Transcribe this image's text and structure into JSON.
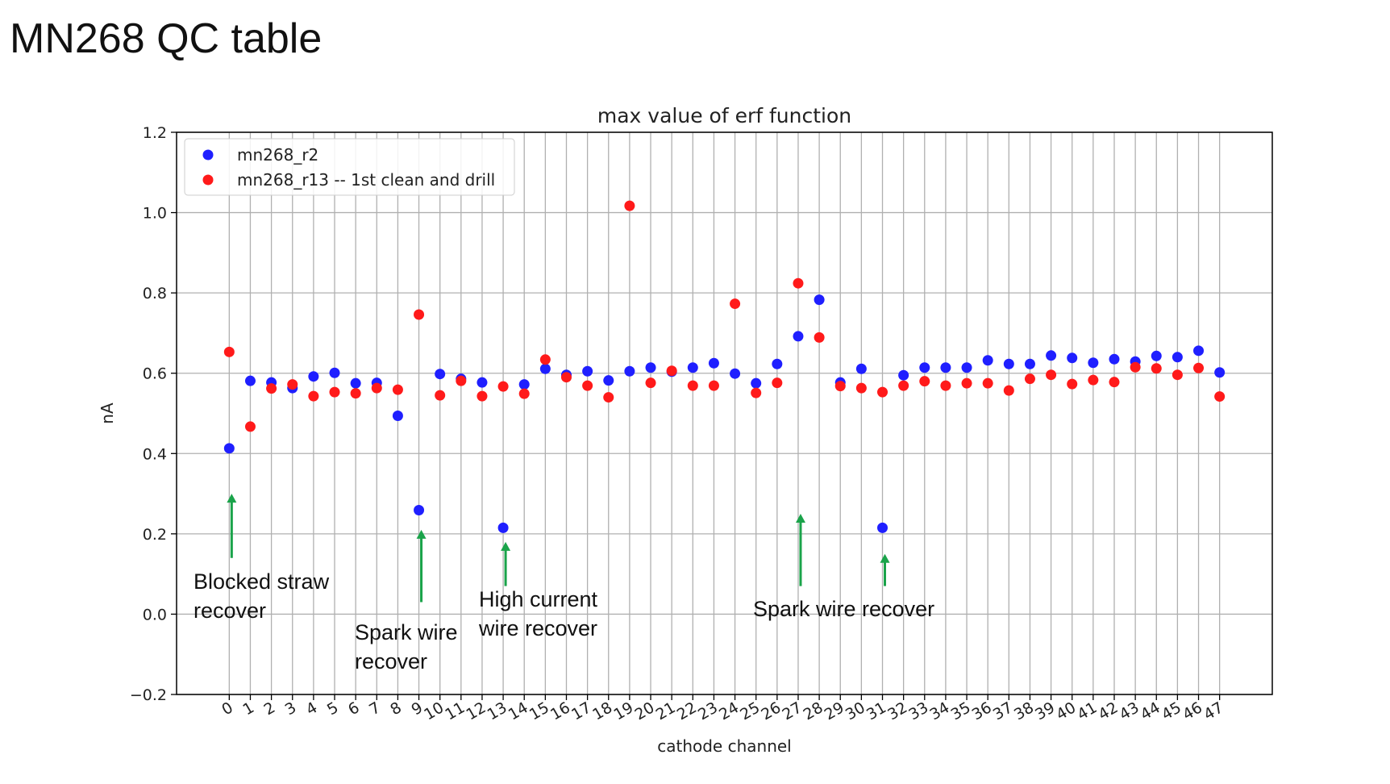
{
  "slide": {
    "title": "MN268 QC table"
  },
  "colors": {
    "series_r2": "#1f1fff",
    "series_r13": "#ff1a1a",
    "arrow": "#1aa34a",
    "grid": "#b0b0b0"
  },
  "annotations": [
    {
      "id": "a0",
      "lines": [
        "Blocked straw",
        "recover"
      ],
      "channel": 0,
      "arrow_from": 0.14,
      "arrow_to": 0.3
    },
    {
      "id": "a9",
      "lines": [
        "Spark wire",
        "recover"
      ],
      "channel": 9,
      "arrow_from": 0.03,
      "arrow_to": 0.21
    },
    {
      "id": "a13",
      "lines": [
        "High current",
        "wire recover"
      ],
      "channel": 13,
      "arrow_from": 0.07,
      "arrow_to": 0.18
    },
    {
      "id": "a27",
      "lines": [
        "Spark wire recover"
      ],
      "channel": 27,
      "arrow_from": 0.07,
      "arrow_to": 0.25
    },
    {
      "id": "a31",
      "lines": [],
      "channel": 31,
      "arrow_from": 0.07,
      "arrow_to": 0.15
    }
  ],
  "chart_data": {
    "type": "scatter",
    "title": "max value of erf function",
    "xlabel": "cathode channel",
    "ylabel": "nA",
    "xlim": [
      -2.5,
      49.5
    ],
    "ylim": [
      -0.2,
      1.2
    ],
    "yticks": [
      -0.2,
      0.0,
      0.2,
      0.4,
      0.6,
      0.8,
      1.0,
      1.2
    ],
    "ytick_labels": [
      "−0.2",
      "0.0",
      "0.2",
      "0.4",
      "0.6",
      "0.8",
      "1.0",
      "1.2"
    ],
    "x": [
      0,
      1,
      2,
      3,
      4,
      5,
      6,
      7,
      8,
      9,
      10,
      11,
      12,
      13,
      14,
      15,
      16,
      17,
      18,
      19,
      20,
      21,
      22,
      23,
      24,
      25,
      26,
      27,
      28,
      29,
      30,
      31,
      32,
      33,
      34,
      35,
      36,
      37,
      38,
      39,
      40,
      41,
      42,
      43,
      44,
      45,
      46,
      47
    ],
    "xtick_labels": [
      "0",
      "1",
      "2",
      "3",
      "4",
      "5",
      "6",
      "7",
      "8",
      "9",
      "10",
      "11",
      "12",
      "13",
      "14",
      "15",
      "16",
      "17",
      "18",
      "19",
      "20",
      "21",
      "22",
      "23",
      "24",
      "25",
      "26",
      "27",
      "28",
      "29",
      "30",
      "31",
      "32",
      "33",
      "34",
      "35",
      "36",
      "37",
      "38",
      "39",
      "40",
      "41",
      "42",
      "43",
      "44",
      "45",
      "46",
      "47"
    ],
    "grid": true,
    "legend_position": "upper-left",
    "series": [
      {
        "name": "mn268_r2",
        "color": "#1f1fff",
        "values": [
          0.413,
          0.581,
          0.577,
          0.563,
          0.592,
          0.601,
          0.575,
          0.576,
          0.494,
          0.259,
          0.598,
          0.586,
          0.577,
          0.215,
          0.572,
          0.611,
          0.596,
          0.605,
          0.582,
          0.605,
          0.614,
          0.604,
          0.614,
          0.625,
          0.599,
          0.575,
          0.623,
          0.692,
          0.783,
          0.577,
          0.611,
          0.215,
          0.595,
          0.614,
          0.614,
          0.614,
          0.632,
          0.623,
          0.623,
          0.644,
          0.638,
          0.626,
          0.635,
          0.629,
          0.643,
          0.64,
          0.656,
          0.602
        ]
      },
      {
        "name": "mn268_r13 -- 1st clean and drill",
        "color": "#ff1a1a",
        "values": [
          0.653,
          0.467,
          0.562,
          0.572,
          0.543,
          0.553,
          0.55,
          0.563,
          0.559,
          0.746,
          0.545,
          0.581,
          0.543,
          0.567,
          0.549,
          0.634,
          0.59,
          0.569,
          0.54,
          1.017,
          0.576,
          0.606,
          0.569,
          0.569,
          0.773,
          0.551,
          0.576,
          0.824,
          0.689,
          0.568,
          0.563,
          0.553,
          0.569,
          0.58,
          0.569,
          0.575,
          0.575,
          0.557,
          0.586,
          0.596,
          0.573,
          0.583,
          0.578,
          0.615,
          0.612,
          0.596,
          0.613,
          0.542
        ]
      }
    ]
  }
}
